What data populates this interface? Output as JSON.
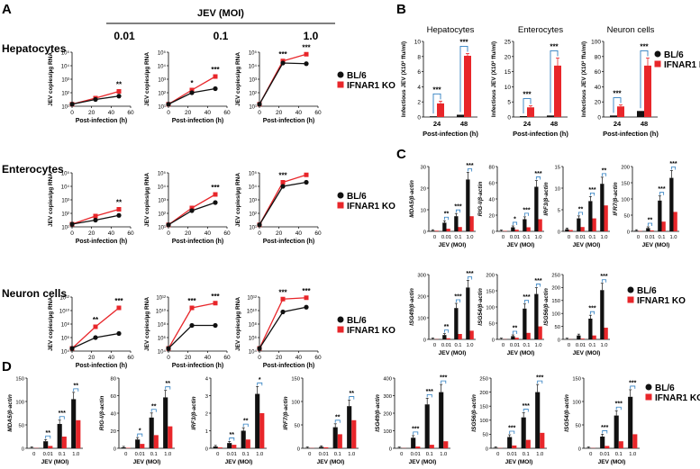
{
  "figure": {
    "panel_labels": [
      "A",
      "B",
      "C",
      "D"
    ],
    "moi_header": "JEV (MOI)",
    "moi_levels": [
      "0.01",
      "0.1",
      "1.0"
    ],
    "legend": [
      "BL/6",
      "IFNAR1 KO"
    ]
  },
  "colors": {
    "bl6": "#111111",
    "ko": "#e8262a",
    "accent": "#2f7fc1"
  },
  "chart_data": [
    {
      "panel": "A",
      "type": "line",
      "x": [
        0,
        24,
        48
      ],
      "xlabel": "Post-infection (h)",
      "ylabel": "JEV copies/µg RNA",
      "xticks": [
        "0",
        "20",
        "40",
        "60"
      ],
      "ylim_exp": [
        1,
        5
      ],
      "rows": [
        {
          "title": "Hepatocytes",
          "yticks": [
            "10¹",
            "10²",
            "10³",
            "10⁴",
            "10⁵"
          ],
          "plots": [
            {
              "moi": "0.01",
              "bl6": [
                1.15,
                1.5,
                1.75
              ],
              "ko": [
                1.15,
                1.6,
                2.1
              ],
              "sig": [
                "",
                "**"
              ]
            },
            {
              "moi": "0.1",
              "bl6": [
                1.15,
                2.0,
                2.3
              ],
              "ko": [
                1.15,
                2.2,
                3.2
              ],
              "sig": [
                "*",
                "***"
              ]
            },
            {
              "moi": "1.0",
              "bl6": [
                1.15,
                4.2,
                4.15
              ],
              "ko": [
                1.15,
                4.35,
                4.85
              ],
              "sig": [
                "***",
                "***"
              ]
            }
          ]
        },
        {
          "title": "Enterocytes",
          "yticks": [
            "10¹",
            "10²",
            "10³",
            "10⁴",
            "10⁵"
          ],
          "plots": [
            {
              "moi": "0.01",
              "bl6": [
                1.2,
                1.5,
                1.85
              ],
              "ko": [
                1.2,
                1.8,
                2.3
              ],
              "sig": [
                "",
                "**"
              ]
            },
            {
              "moi": "0.1",
              "bl6": [
                1.15,
                2.2,
                2.8
              ],
              "ko": [
                1.15,
                2.4,
                3.4
              ],
              "sig": [
                "",
                "***"
              ]
            },
            {
              "moi": "1.0",
              "bl6": [
                1.15,
                4.0,
                4.3
              ],
              "ko": [
                1.15,
                4.3,
                4.85
              ],
              "sig": [
                "***",
                ""
              ]
            }
          ]
        },
        {
          "title": "Neuron cells",
          "yticks": [
            "10⁴",
            "10⁶",
            "10⁸",
            "10¹⁰",
            "10¹²"
          ],
          "plots": [
            {
              "moi": "0.01",
              "bl6": [
                1.2,
                2.0,
                2.3
              ],
              "ko": [
                1.2,
                2.8,
                4.2
              ],
              "sig": [
                "**",
                "***"
              ]
            },
            {
              "moi": "0.1",
              "bl6": [
                1.2,
                2.9,
                2.9
              ],
              "ko": [
                1.2,
                4.2,
                4.55
              ],
              "sig": [
                "***",
                "***"
              ]
            },
            {
              "moi": "1.0",
              "bl6": [
                1.2,
                3.9,
                4.25
              ],
              "ko": [
                1.2,
                4.85,
                4.95
              ],
              "sig": [
                "***",
                "***"
              ]
            }
          ]
        }
      ]
    },
    {
      "panel": "B",
      "type": "bar",
      "categories": [
        "24",
        "48"
      ],
      "xlabel": "Post-infection (h)",
      "ylabel": "Infectious JEV (X10² ffu/ml)",
      "plots": [
        {
          "title": "Hepatocytes",
          "ylim": [
            0,
            10
          ],
          "yticks": [
            0,
            2,
            4,
            6,
            8,
            10
          ],
          "bl6": [
            0.1,
            0.3
          ],
          "ko": [
            1.8,
            8.1
          ],
          "err": [
            0.3,
            0.3
          ],
          "sig": [
            "***",
            "***"
          ]
        },
        {
          "title": "Enterocytes",
          "ylim": [
            0,
            25
          ],
          "yticks": [
            0,
            5,
            10,
            15,
            20,
            25
          ],
          "bl6": [
            0.3,
            0.5
          ],
          "ko": [
            3.2,
            17.0
          ],
          "err": [
            0.5,
            2.5
          ],
          "sig": [
            "***",
            "***"
          ]
        },
        {
          "title": "Neuron cells",
          "ylim": [
            0,
            100
          ],
          "yticks": [
            0,
            20,
            40,
            60,
            80,
            100
          ],
          "bl6": [
            2,
            8
          ],
          "ko": [
            14,
            68
          ],
          "err": [
            2,
            10
          ],
          "sig": [
            "***",
            "***"
          ]
        }
      ]
    },
    {
      "panel": "C",
      "type": "bar",
      "categories": [
        "0",
        "0.01",
        "0.1",
        "1.0"
      ],
      "xlabel": "JEV (MOI)",
      "plots": [
        {
          "ylabel": "MDA5/β-actin",
          "ylim": [
            0,
            30
          ],
          "yticks": [
            0,
            10,
            20,
            30
          ],
          "bl6": [
            0.3,
            4,
            7,
            24
          ],
          "ko": [
            0.3,
            1.2,
            2,
            7
          ],
          "sig": [
            "**",
            "***",
            "***"
          ]
        },
        {
          "ylabel": "RIG-I/β-actin",
          "ylim": [
            0,
            80
          ],
          "yticks": [
            0,
            20,
            40,
            60,
            80
          ],
          "bl6": [
            0.5,
            5,
            15,
            55
          ],
          "ko": [
            0.5,
            2,
            5,
            15
          ],
          "sig": [
            "*",
            "***",
            "***"
          ]
        },
        {
          "ylabel": "IRF3/β-actin",
          "ylim": [
            0,
            15
          ],
          "yticks": [
            0,
            5,
            10,
            15
          ],
          "bl6": [
            0.5,
            3,
            7,
            11
          ],
          "ko": [
            0.3,
            1,
            3,
            6
          ],
          "sig": [
            "**",
            "***",
            "**"
          ]
        },
        {
          "ylabel": "IFR7/β-actin",
          "ylim": [
            0,
            200
          ],
          "yticks": [
            0,
            50,
            100,
            150,
            200
          ],
          "bl6": [
            2,
            10,
            95,
            165
          ],
          "ko": [
            1,
            3,
            30,
            60
          ],
          "sig": [
            "**",
            "***",
            "***"
          ]
        },
        {
          "ylabel": "ISG49/β-actin",
          "ylim": [
            0,
            300
          ],
          "yticks": [
            0,
            100,
            200,
            300
          ],
          "bl6": [
            2,
            20,
            145,
            240
          ],
          "ko": [
            1,
            5,
            25,
            40
          ],
          "sig": [
            "**",
            "***",
            "***"
          ]
        },
        {
          "ylabel": "ISG54/β-actin",
          "ylim": [
            0,
            200
          ],
          "yticks": [
            0,
            50,
            100,
            150,
            200
          ],
          "bl6": [
            1,
            10,
            95,
            140
          ],
          "ko": [
            0.5,
            5,
            20,
            40
          ],
          "sig": [
            "**",
            "***",
            "***"
          ]
        },
        {
          "ylabel": "ISG56/β-actin",
          "ylim": [
            0,
            250
          ],
          "yticks": [
            0,
            50,
            100,
            150,
            200,
            250
          ],
          "bl6": [
            1,
            15,
            80,
            190
          ],
          "ko": [
            0.5,
            3,
            15,
            45
          ],
          "sig": [
            "",
            "***",
            "***"
          ]
        }
      ]
    },
    {
      "panel": "D",
      "type": "bar",
      "categories": [
        "0",
        "0.01",
        "0.1",
        "1.0"
      ],
      "xlabel": "JEV (MOI)",
      "plots": [
        {
          "ylabel": "MDA5/β-actin",
          "ylim": [
            0,
            150
          ],
          "yticks": [
            0,
            50,
            100,
            150
          ],
          "bl6": [
            1,
            15,
            52,
            105
          ],
          "ko": [
            0.5,
            5,
            25,
            60
          ],
          "sig": [
            "**",
            "***",
            "**"
          ]
        },
        {
          "ylabel": "RIG-I/β-actin",
          "ylim": [
            0,
            80
          ],
          "yticks": [
            0,
            20,
            40,
            60,
            80
          ],
          "bl6": [
            1,
            10,
            35,
            58
          ],
          "ko": [
            0.5,
            5,
            15,
            25
          ],
          "sig": [
            "*",
            "**",
            "**"
          ]
        },
        {
          "ylabel": "IRF3/β-actin",
          "ylim": [
            0,
            4
          ],
          "yticks": [
            0,
            1,
            2,
            3,
            4
          ],
          "bl6": [
            0.1,
            0.3,
            1.0,
            3.1
          ],
          "ko": [
            0.05,
            0.2,
            0.5,
            2.0
          ],
          "sig": [
            "**",
            "**",
            "*"
          ]
        },
        {
          "ylabel": "IRF7/β-actin",
          "ylim": [
            0,
            150
          ],
          "yticks": [
            0,
            50,
            100,
            150
          ],
          "bl6": [
            1,
            3,
            45,
            90
          ],
          "ko": [
            0.5,
            2,
            30,
            60
          ],
          "sig": [
            "",
            "**",
            "**"
          ]
        },
        {
          "ylabel": "ISG49/β-actin",
          "ylim": [
            0,
            400
          ],
          "yticks": [
            0,
            100,
            200,
            300,
            400
          ],
          "bl6": [
            2,
            60,
            250,
            320
          ],
          "ko": [
            1,
            10,
            20,
            40
          ],
          "sig": [
            "***",
            "***",
            "***"
          ]
        },
        {
          "ylabel": "ISG56/β-actin",
          "ylim": [
            0,
            250
          ],
          "yticks": [
            0,
            50,
            100,
            150,
            200,
            250
          ],
          "bl6": [
            2,
            40,
            110,
            200
          ],
          "ko": [
            1,
            10,
            30,
            55
          ],
          "sig": [
            "***",
            "***",
            "***"
          ]
        },
        {
          "ylabel": "ISG54/β-actin",
          "ylim": [
            0,
            150
          ],
          "yticks": [
            0,
            50,
            100,
            150
          ],
          "bl6": [
            1,
            25,
            70,
            110
          ],
          "ko": [
            0.5,
            5,
            15,
            30
          ],
          "sig": [
            "***",
            "***",
            "***"
          ]
        }
      ]
    }
  ]
}
